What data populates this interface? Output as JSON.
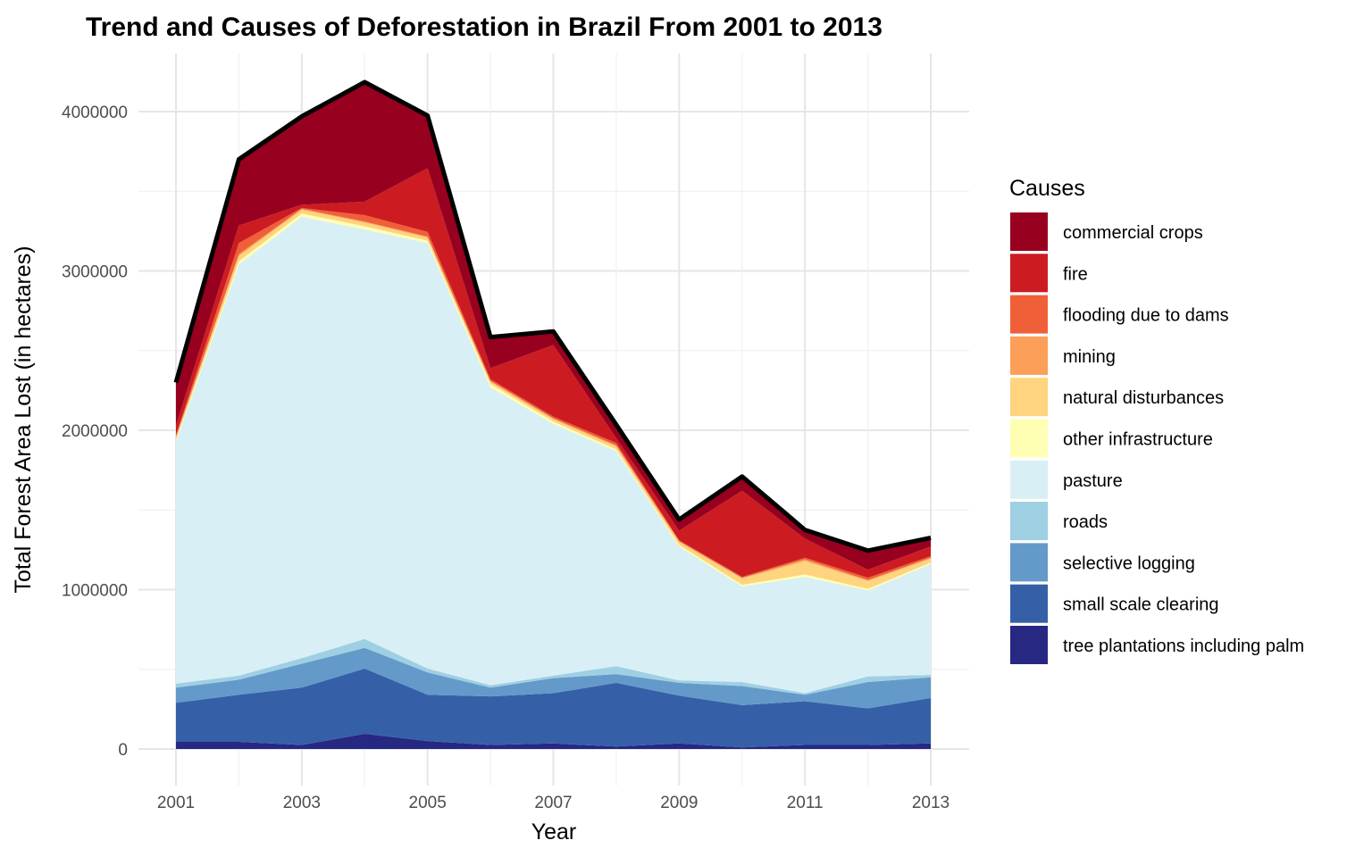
{
  "chart_data": {
    "type": "area",
    "title": "Trend and Causes of Deforestation in Brazil From 2001 to 2013",
    "xlabel": "Year",
    "ylabel": "Total Forest Area Lost (in hectares)",
    "x": [
      2001,
      2002,
      2003,
      2004,
      2005,
      2006,
      2007,
      2008,
      2009,
      2010,
      2011,
      2012,
      2013
    ],
    "x_ticks": [
      "2001",
      "2003",
      "2005",
      "2007",
      "2009",
      "2011",
      "2013"
    ],
    "y_ticks": [
      "0",
      "1000000",
      "2000000",
      "3000000",
      "4000000"
    ],
    "ylim": [
      0,
      4350000
    ],
    "xlim": [
      2000.7,
      2013.3
    ],
    "grid": true,
    "legend_title": "Causes",
    "legend_position": "right",
    "total_line_color": "#000000",
    "series": [
      {
        "name": "tree plantations including palm",
        "color": "#262882",
        "values": [
          45000,
          45000,
          25000,
          95000,
          50000,
          25000,
          35000,
          15000,
          35000,
          10000,
          25000,
          25000,
          35000
        ]
      },
      {
        "name": "small scale clearing",
        "color": "#3560A8",
        "values": [
          245000,
          295000,
          360000,
          410000,
          290000,
          305000,
          315000,
          400000,
          300000,
          265000,
          275000,
          230000,
          285000
        ]
      },
      {
        "name": "selective logging",
        "color": "#639AC9",
        "values": [
          95000,
          95000,
          150000,
          130000,
          140000,
          55000,
          95000,
          55000,
          80000,
          120000,
          40000,
          165000,
          130000
        ]
      },
      {
        "name": "roads",
        "color": "#9ECFE3",
        "values": [
          25000,
          25000,
          35000,
          55000,
          25000,
          15000,
          15000,
          50000,
          15000,
          25000,
          10000,
          35000,
          15000
        ]
      },
      {
        "name": "pasture",
        "color": "#D8EFF5",
        "values": [
          1520000,
          2580000,
          2770000,
          2570000,
          2670000,
          1870000,
          1580000,
          1350000,
          840000,
          600000,
          730000,
          540000,
          695000
        ]
      },
      {
        "name": "other infrastructure",
        "color": "#FFFFB3",
        "values": [
          10000,
          20000,
          20000,
          20000,
          15000,
          20000,
          15000,
          10000,
          10000,
          10000,
          15000,
          10000,
          10000
        ]
      },
      {
        "name": "natural disturbances",
        "color": "#FED47F",
        "values": [
          15000,
          35000,
          25000,
          25000,
          20000,
          15000,
          15000,
          20000,
          20000,
          40000,
          85000,
          50000,
          25000
        ]
      },
      {
        "name": "mining",
        "color": "#FB9F59",
        "values": [
          5000,
          10000,
          5000,
          5000,
          5000,
          5000,
          5000,
          5000,
          5000,
          5000,
          10000,
          5000,
          5000
        ]
      },
      {
        "name": "flooding due to dams",
        "color": "#F06038",
        "values": [
          10000,
          70000,
          5000,
          40000,
          30000,
          10000,
          10000,
          15000,
          5000,
          5000,
          10000,
          15000,
          10000
        ]
      },
      {
        "name": "fire",
        "color": "#CC1C21",
        "values": [
          60000,
          110000,
          20000,
          85000,
          400000,
          70000,
          450000,
          30000,
          60000,
          540000,
          120000,
          50000,
          60000
        ]
      },
      {
        "name": "commercial crops",
        "color": "#980020",
        "values": [
          270000,
          415000,
          555000,
          750000,
          330000,
          195000,
          85000,
          85000,
          70000,
          90000,
          55000,
          120000,
          55000
        ]
      }
    ]
  }
}
